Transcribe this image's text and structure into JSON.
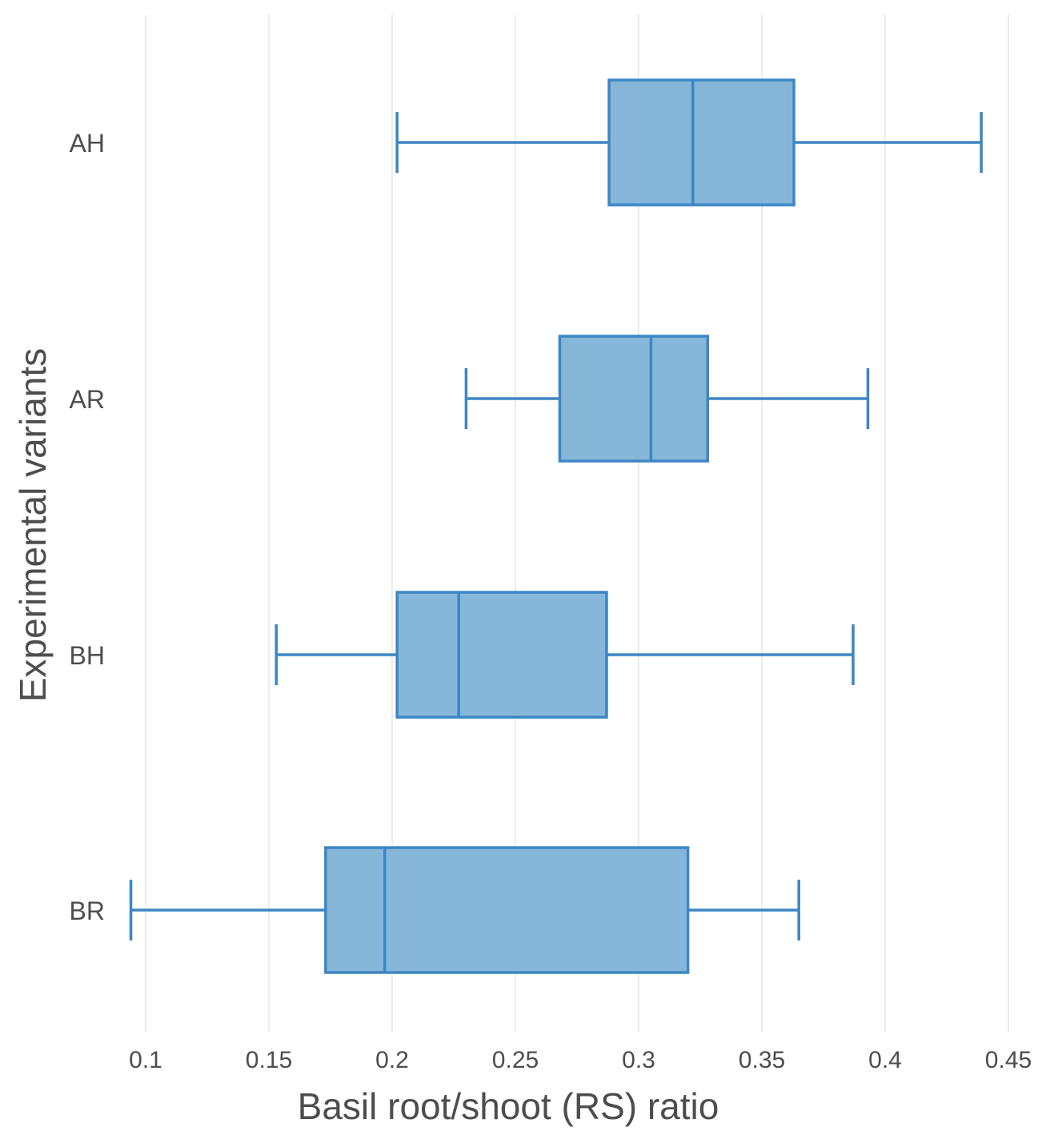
{
  "chart_data": {
    "type": "boxplot",
    "orientation": "horizontal",
    "title": "",
    "xlabel": "Basil root/shoot (RS) ratio",
    "ylabel": "Experimental variants",
    "xlim": [
      0.09,
      0.455
    ],
    "x_ticks": [
      0.1,
      0.15,
      0.2,
      0.25,
      0.3,
      0.35,
      0.4,
      0.45
    ],
    "x_tick_labels": [
      "0.1",
      "0.15",
      "0.2",
      "0.25",
      "0.3",
      "0.35",
      "0.4",
      "0.45"
    ],
    "categories": [
      "AH",
      "AR",
      "BH",
      "BR"
    ],
    "series": [
      {
        "name": "AH",
        "min": 0.202,
        "q1": 0.288,
        "median": 0.322,
        "q3": 0.363,
        "max": 0.439
      },
      {
        "name": "AR",
        "min": 0.23,
        "q1": 0.268,
        "median": 0.305,
        "q3": 0.328,
        "max": 0.393
      },
      {
        "name": "BH",
        "min": 0.153,
        "q1": 0.202,
        "median": 0.227,
        "q3": 0.287,
        "max": 0.387
      },
      {
        "name": "BR",
        "min": 0.094,
        "q1": 0.173,
        "median": 0.197,
        "q3": 0.32,
        "max": 0.365
      }
    ],
    "grid": true,
    "legend": "none",
    "colors": {
      "fill": "#86b7d9",
      "stroke": "#3d86c4",
      "grid": "#ececec",
      "text": "#4d4d4d"
    }
  }
}
